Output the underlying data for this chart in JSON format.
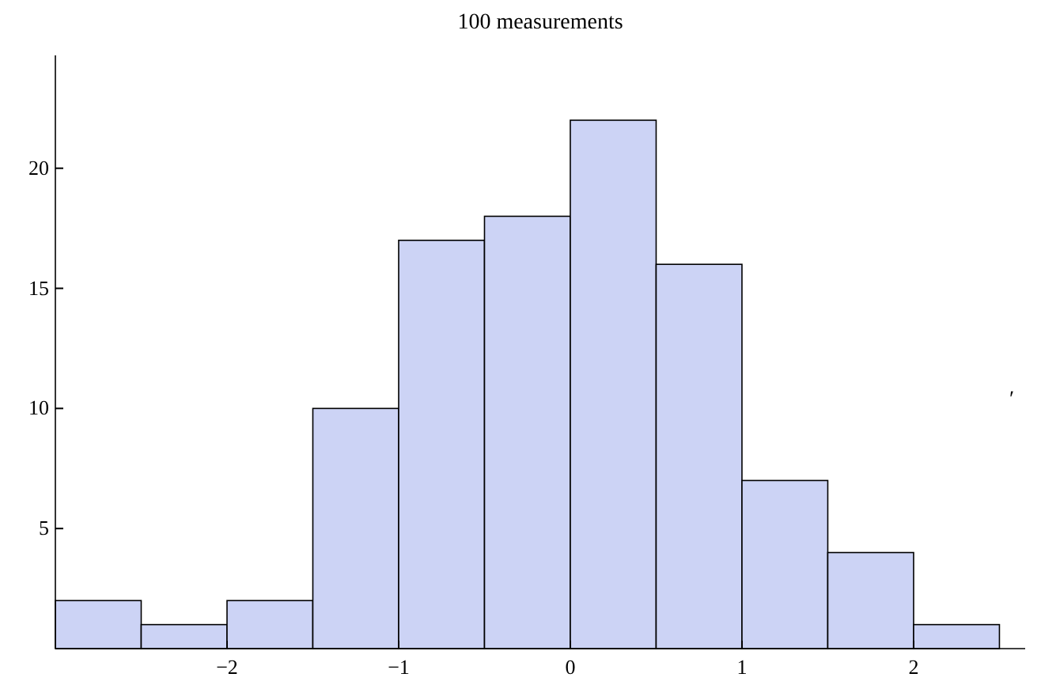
{
  "chart_data": {
    "type": "histogram",
    "title": "100 measurements",
    "bins": [
      -3,
      -2.5,
      -2,
      -1.5,
      -1,
      -0.5,
      0,
      0.5,
      1,
      1.5,
      2,
      2.5
    ],
    "values": [
      2,
      1,
      2,
      10,
      17,
      18,
      22,
      16,
      7,
      4,
      1
    ],
    "color": "#ccd3f5",
    "xlim": [
      -3,
      2.65
    ],
    "ylim": [
      0,
      24.7
    ],
    "xticks": [
      {
        "value": -2,
        "label": "−2"
      },
      {
        "value": -1,
        "label": "−1"
      },
      0,
      1,
      2
    ],
    "yticks": [
      5,
      10,
      15,
      20
    ],
    "grid": false,
    "annotations": [
      "′"
    ]
  }
}
